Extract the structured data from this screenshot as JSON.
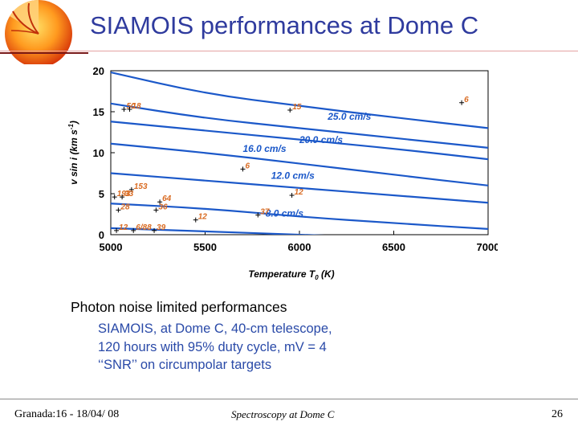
{
  "slide": {
    "title": "SIAMOIS performances at Dome C",
    "caption": "Photon noise limited performances",
    "bullets": [
      "SIAMOIS, at Dome C, 40-cm telescope,",
      "120 hours with 95% duty cycle, mV = 4",
      "‘‘SNR’’ on circumpolar targets"
    ],
    "footer_left": "Granada:16 - 18/04/ 08",
    "footer_center": "Spectroscopy at Dome C",
    "footer_right": "26"
  },
  "colors": {
    "title": "#2f3b9e",
    "contour": "#1b58c9",
    "star_label": "#d96b22",
    "bullets": "#2a4aa8"
  },
  "chart_data": {
    "type": "line",
    "xlabel": "Temperature T",
    "xlabel_sub": "0",
    "xlabel_unit": " (K)",
    "ylabel": "v sin i  (km s",
    "ylabel_sup": "-1",
    "ylabel_close": ")",
    "xlim": [
      5000,
      7000
    ],
    "ylim": [
      0,
      20
    ],
    "xticks": [
      5000,
      5500,
      6000,
      6500,
      7000
    ],
    "yticks": [
      0,
      5,
      10,
      15,
      20
    ],
    "contours": [
      {
        "x": [
          5000,
          5500,
          6000,
          6500,
          7000
        ],
        "y": [
          19.8,
          17.2,
          15.7,
          14.3,
          13.0
        ]
      },
      {
        "x": [
          5000,
          5500,
          6000,
          6500,
          7000
        ],
        "y": [
          16.0,
          14.2,
          13.0,
          11.8,
          10.6
        ],
        "label": "25.0 cm/s",
        "label_x": 6150,
        "label_y": 14.0
      },
      {
        "x": [
          5000,
          5500,
          6000,
          6500,
          7000
        ],
        "y": [
          13.8,
          12.7,
          11.6,
          10.5,
          9.2
        ],
        "label": "20.0 cm/s",
        "label_x": 6000,
        "label_y": 11.2
      },
      {
        "x": [
          5000,
          5500,
          6000,
          6500,
          7000
        ],
        "y": [
          11.1,
          10.0,
          8.7,
          7.3,
          6.0
        ],
        "label": "16.0 cm/s",
        "label_x": 5700,
        "label_y": 10.1
      },
      {
        "x": [
          5000,
          5500,
          6000,
          6500,
          7000
        ],
        "y": [
          7.5,
          6.6,
          5.7,
          4.8,
          3.9
        ],
        "label": "12.0 cm/s",
        "label_x": 5850,
        "label_y": 6.8
      },
      {
        "x": [
          5000,
          5500,
          6000,
          6500,
          7000
        ],
        "y": [
          3.8,
          3.2,
          2.2,
          1.4,
          0.7
        ],
        "label": "8.0 cm/s",
        "label_x": 5820,
        "label_y": 2.2
      },
      {
        "x": [
          5000,
          5500,
          6000,
          6500,
          7000
        ],
        "y": [
          0.8,
          0.4,
          0.0,
          -0.4,
          -0.8
        ]
      }
    ],
    "stars": [
      {
        "x": 5070,
        "y": 15.3,
        "label": "50"
      },
      {
        "x": 5100,
        "y": 15.3,
        "label": "18"
      },
      {
        "x": 5950,
        "y": 15.2,
        "label": "15"
      },
      {
        "x": 6860,
        "y": 16.1,
        "label": "6"
      },
      {
        "x": 5700,
        "y": 8.0,
        "label": "6"
      },
      {
        "x": 5110,
        "y": 5.5,
        "label": "153"
      },
      {
        "x": 5020,
        "y": 4.6,
        "label": "193"
      },
      {
        "x": 5060,
        "y": 4.6,
        "label": "33"
      },
      {
        "x": 5260,
        "y": 4.0,
        "label": "64"
      },
      {
        "x": 5040,
        "y": 3.0,
        "label": "28"
      },
      {
        "x": 5240,
        "y": 3.0,
        "label": "36"
      },
      {
        "x": 5960,
        "y": 4.8,
        "label": "12"
      },
      {
        "x": 5450,
        "y": 1.8,
        "label": "12"
      },
      {
        "x": 5780,
        "y": 2.4,
        "label": "37"
      },
      {
        "x": 5030,
        "y": 0.5,
        "label": "12"
      },
      {
        "x": 5120,
        "y": 0.5,
        "label": "6/88"
      },
      {
        "x": 5230,
        "y": 0.5,
        "label": "39"
      }
    ]
  }
}
